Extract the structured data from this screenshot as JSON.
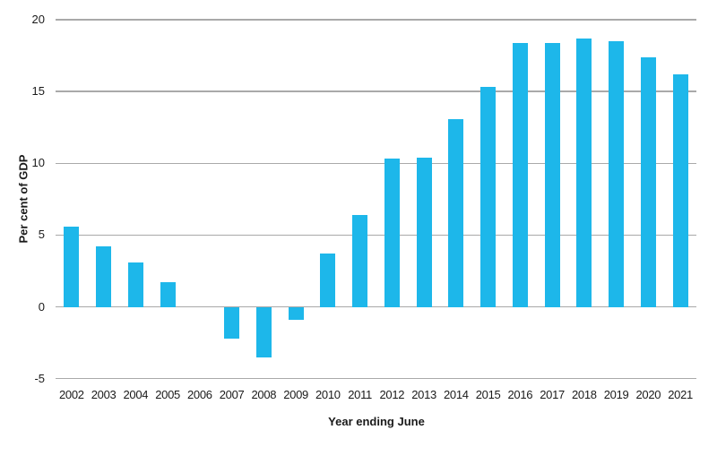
{
  "chart_data": {
    "type": "bar",
    "title": "",
    "xlabel": "Year ending June",
    "ylabel": "Per cent of GDP",
    "categories": [
      "2002",
      "2003",
      "2004",
      "2005",
      "2006",
      "2007",
      "2008",
      "2009",
      "2010",
      "2011",
      "2012",
      "2013",
      "2014",
      "2015",
      "2016",
      "2017",
      "2018",
      "2019",
      "2020",
      "2021"
    ],
    "values": [
      5.6,
      4.2,
      3.1,
      1.7,
      0.0,
      -2.2,
      -3.5,
      -0.9,
      3.7,
      6.4,
      10.3,
      10.4,
      13.1,
      15.3,
      18.4,
      18.4,
      18.7,
      18.5,
      17.4,
      16.2
    ],
    "ylim": [
      -5,
      20
    ],
    "yticks": [
      20,
      15,
      10,
      5,
      0,
      -5
    ],
    "grid": true,
    "legend": "none",
    "bar_color": "#1db7ea",
    "gridline_color": "#a9a9a9",
    "text_color": "#1a1a1a"
  }
}
